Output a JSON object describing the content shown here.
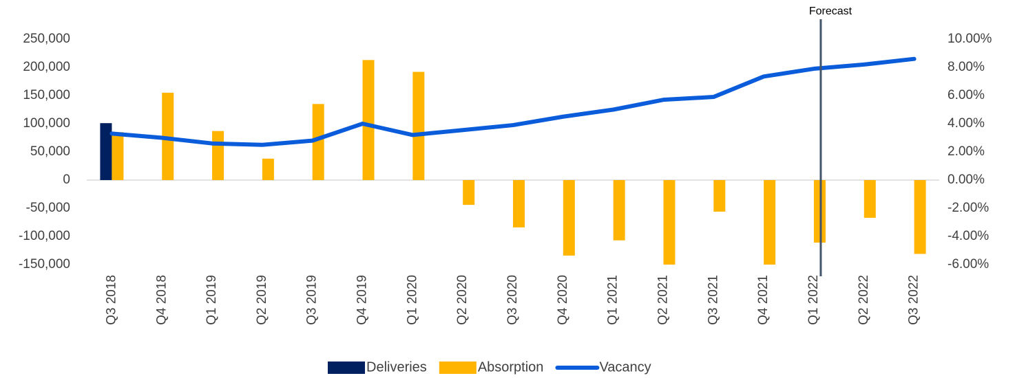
{
  "chart_data": {
    "type": "bar-line",
    "categories": [
      "Q3 2018",
      "Q4 2018",
      "Q1 2019",
      "Q2 2019",
      "Q3 2019",
      "Q4 2019",
      "Q1 2020",
      "Q2 2020",
      "Q3 2020",
      "Q4 2020",
      "Q1 2021",
      "Q2 2021",
      "Q3 2021",
      "Q4 2021",
      "Q1 2022",
      "Q2 2022",
      "Q3 2022"
    ],
    "series": [
      {
        "name": "Deliveries",
        "color": "#002060",
        "kind": "bar",
        "values": [
          101000,
          0,
          0,
          0,
          0,
          0,
          0,
          0,
          0,
          0,
          0,
          0,
          0,
          0,
          0,
          0,
          0
        ]
      },
      {
        "name": "Absorption",
        "color": "#FFB500",
        "kind": "bar",
        "values": [
          85000,
          155000,
          87000,
          38000,
          135000,
          213000,
          192000,
          -44000,
          -84000,
          -134000,
          -107000,
          -150000,
          -56000,
          -150000,
          -111000,
          -67000,
          -131000
        ]
      },
      {
        "name": "Vacancy",
        "color": "#0A5CDB",
        "kind": "line",
        "axis": "y2",
        "values": [
          3.3,
          3.0,
          2.6,
          2.5,
          2.8,
          4.0,
          3.2,
          3.55,
          3.9,
          4.5,
          5.0,
          5.7,
          5.9,
          7.35,
          7.9,
          8.2,
          8.6
        ]
      }
    ],
    "ylim": [
      -150000,
      250000
    ],
    "yticks": [
      {
        "value": -150000,
        "label": "-150,000"
      },
      {
        "value": -100000,
        "label": "-100,000"
      },
      {
        "value": -50000,
        "label": "-50,000"
      },
      0,
      {
        "value": 50000,
        "label": "50,000"
      },
      {
        "value": 100000,
        "label": "100,000"
      },
      {
        "value": 150000,
        "label": "150,000"
      },
      {
        "value": 200000,
        "label": "200,000"
      },
      {
        "value": 250000,
        "label": "250,000"
      }
    ],
    "y2lim": [
      -6,
      10
    ],
    "y2ticks": [
      {
        "value": -6,
        "label": "-6.00%"
      },
      {
        "value": -4,
        "label": "-4.00%"
      },
      {
        "value": -2,
        "label": "-2.00%"
      },
      {
        "value": 0,
        "label": "0.00%"
      },
      {
        "value": 2,
        "label": "2.00%"
      },
      {
        "value": 4,
        "label": "4.00%"
      },
      {
        "value": 6,
        "label": "6.00%"
      },
      {
        "value": 8,
        "label": "8.00%"
      },
      {
        "value": 10,
        "label": "10.00%"
      }
    ],
    "annotations": [
      {
        "text": "Forecast",
        "category": "Q1 2022"
      }
    ],
    "legend": "bottom"
  }
}
